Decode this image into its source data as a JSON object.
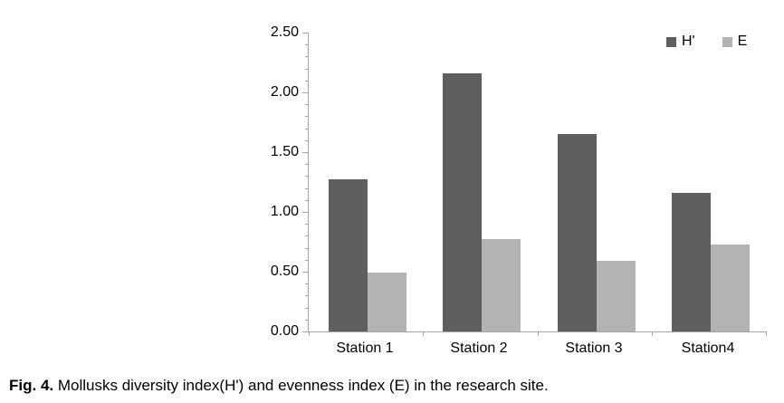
{
  "figure": {
    "caption": {
      "prefix": "Fig. 4.",
      "text": "Mollusks diversity index(H') and evenness index (E) in the research site."
    }
  },
  "chart_data": {
    "type": "bar",
    "categories": [
      "Station 1",
      "Station 2",
      "Station 3",
      "Station4"
    ],
    "series": [
      {
        "name": "H'",
        "color": "#5f5f5f",
        "values": [
          1.27,
          2.16,
          1.65,
          1.16
        ]
      },
      {
        "name": "E",
        "color": "#b3b3b3",
        "values": [
          0.49,
          0.77,
          0.59,
          0.73
        ]
      }
    ],
    "ylim": [
      0,
      2.5
    ],
    "y_major_step": 0.5,
    "y_minor_step": 0.1,
    "y_tick_labels": [
      "0.00",
      "0.50",
      "1.00",
      "1.50",
      "2.00",
      "2.50"
    ],
    "grid": false,
    "legend": {
      "position": "top-right",
      "entries": [
        "H'",
        "E"
      ]
    },
    "colors": {
      "axis": "#a6a6a6",
      "text": "#000000",
      "background": "#ffffff"
    }
  }
}
